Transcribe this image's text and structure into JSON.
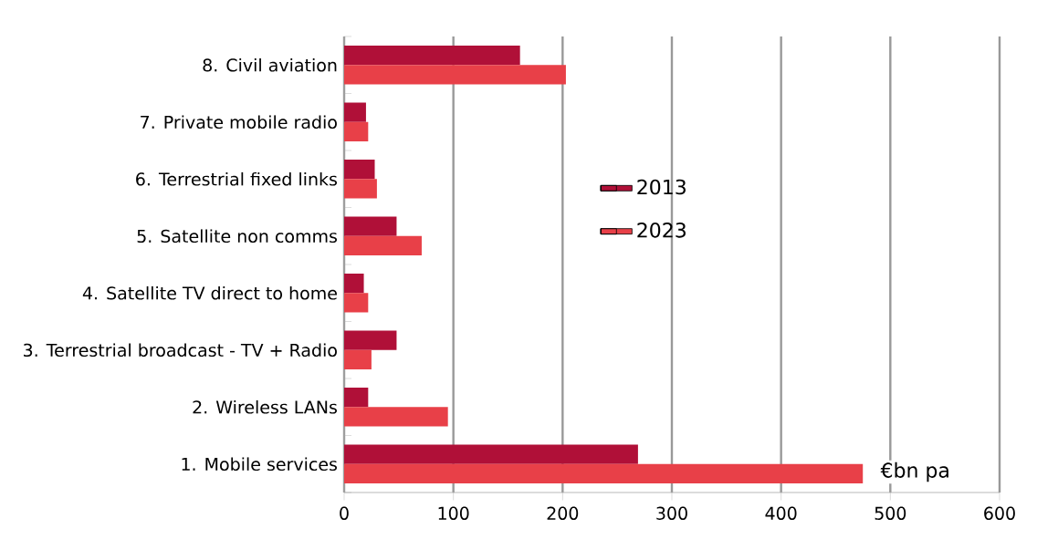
{
  "chart_data": {
    "type": "bar",
    "orientation": "horizontal",
    "categories": [
      "8. Civil aviation",
      "7. Private mobile radio",
      "6. Terrestrial fixed links",
      "5. Satellite non comms",
      "4. Satellite TV direct to home",
      "3. Terrestrial broadcast - TV + Radio",
      "2. Wireless LANs",
      "1. Mobile services"
    ],
    "series": [
      {
        "name": "2013",
        "color": "#b01038",
        "values": [
          161,
          20,
          28,
          48,
          18,
          48,
          22,
          269
        ]
      },
      {
        "name": "2023",
        "color": "#e84048",
        "values": [
          203,
          22,
          30,
          71,
          22,
          25,
          95,
          475
        ]
      }
    ],
    "xlim": [
      0,
      600
    ],
    "xticks": [
      0,
      100,
      200,
      300,
      400,
      500,
      600
    ],
    "grid": "x",
    "legend": "center",
    "annotations": [
      "€bn pa"
    ]
  }
}
